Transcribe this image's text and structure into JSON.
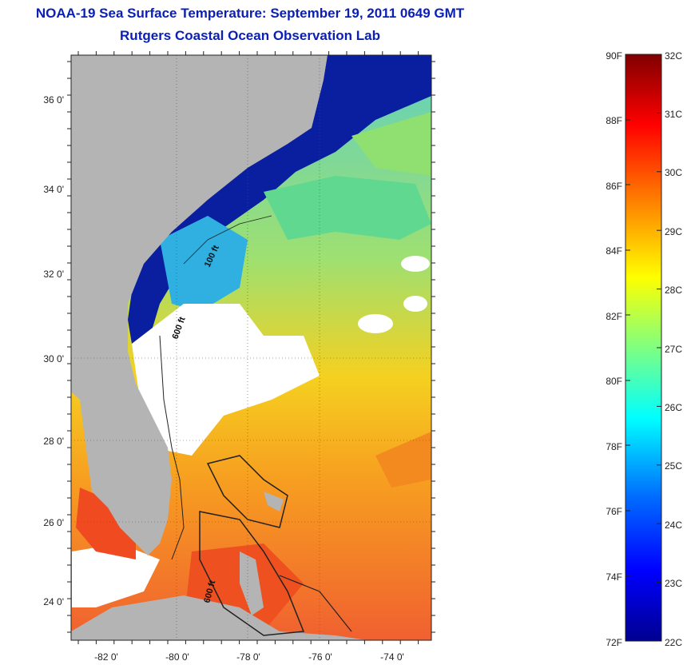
{
  "title": {
    "line1": "NOAA-19 Sea Surface Temperature:  September 19, 2011 0649 GMT",
    "line2": "Rutgers Coastal Ocean Observation Lab"
  },
  "colors": {
    "title": "#0a1fb4",
    "land": "#b4b4b4",
    "cloud": "#ffffff",
    "colormap": [
      "#00008f",
      "#0000ff",
      "#0080ff",
      "#00ffff",
      "#80ff80",
      "#ffff00",
      "#ff8000",
      "#ff0000",
      "#800000"
    ]
  },
  "map": {
    "lon_ticks": [
      "-82 0'",
      "-80 0'",
      "-78 0'",
      "-76 0'",
      "-74 0'"
    ],
    "lat_ticks": [
      "36 0'",
      "34 0'",
      "32 0'",
      "30 0'",
      "28 0'",
      "26 0'",
      "24 0'"
    ],
    "contour_labels": [
      "100 ft",
      "600 ft",
      "600 ft"
    ]
  },
  "colorbar": {
    "f_labels": [
      "90F",
      "88F",
      "86F",
      "84F",
      "82F",
      "80F",
      "78F",
      "76F",
      "74F",
      "72F"
    ],
    "c_labels": [
      "32C",
      "31C",
      "30C",
      "29C",
      "28C",
      "27C",
      "26C",
      "25C",
      "24C",
      "23C",
      "22C"
    ]
  }
}
